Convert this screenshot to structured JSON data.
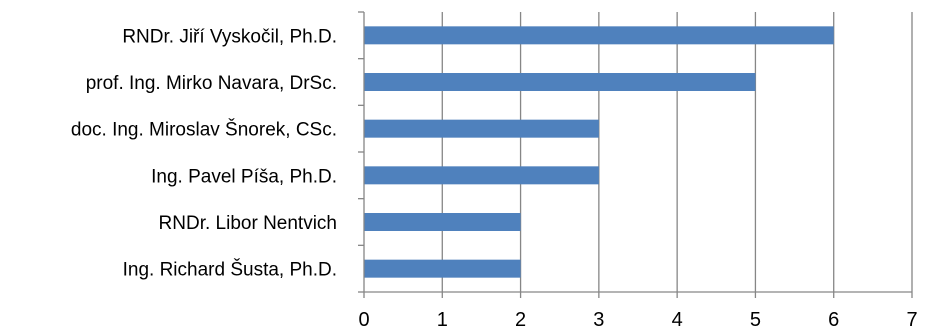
{
  "chart_data": {
    "type": "bar",
    "orientation": "horizontal",
    "categories": [
      "RNDr. Jiří Vyskočil, Ph.D.",
      "prof. Ing. Mirko Navara,  DrSc.",
      "doc. Ing. Miroslav Šnorek, CSc.",
      "Ing. Pavel Píša, Ph.D.",
      "RNDr. Libor Nentvich",
      "Ing. Richard Šusta,  Ph.D."
    ],
    "values": [
      6,
      5,
      3,
      3,
      2,
      2
    ],
    "xlim": [
      0,
      7
    ],
    "x_ticks": [
      "0",
      "1",
      "2",
      "3",
      "4",
      "5",
      "6",
      "7"
    ],
    "grid": "vertical",
    "legend": "none",
    "colors": {
      "bar": "#4f81bd",
      "grid": "#868686"
    }
  }
}
